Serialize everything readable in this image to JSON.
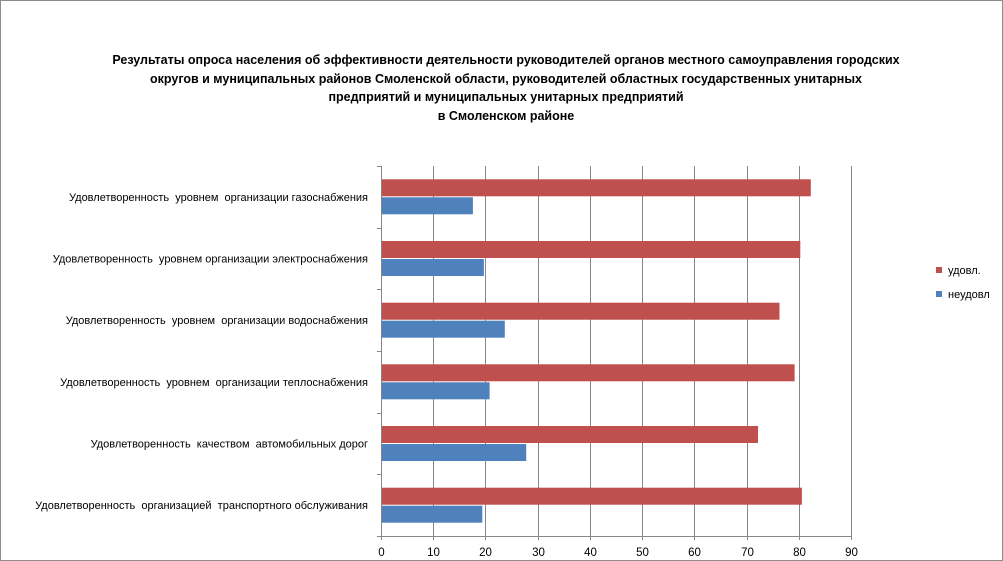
{
  "chart_data": {
    "type": "bar",
    "orientation": "horizontal",
    "title_lines": [
      "Результаты опроса населения об эффективности деятельности руководителей органов местного самоуправления городских",
      "округов и муниципальных районов Смоленской области, руководителей областных государственных унитарных",
      "предприятий и муниципальных унитарных предприятий",
      "в Смоленском районе"
    ],
    "categories": [
      "Удовлетворенность  уровнем  организации газоснабжения",
      "Удовлетворенность  уровнем организации электроснабжения",
      "Удовлетворенность  уровнем  организации водоснабжения",
      "Удовлетворенность  уровнем  организации теплоснабжения",
      "Удовлетворенность  качеством  автомобильных дорог",
      "Удовлетворенность  организацией  транспортного обслуживания"
    ],
    "series": [
      {
        "name": "удовл.",
        "color": "#c0504d",
        "values": [
          82.3,
          80.3,
          76.3,
          79.2,
          72.2,
          80.6
        ]
      },
      {
        "name": "неудовл",
        "color": "#4f81bd",
        "values": [
          17.6,
          19.7,
          23.7,
          20.8,
          27.8,
          19.4
        ]
      }
    ],
    "xlim": [
      0,
      90
    ],
    "x_ticks": [
      0,
      10,
      20,
      30,
      40,
      50,
      60,
      70,
      80,
      90
    ],
    "grid": "vertical",
    "grid_color": "#878787",
    "legend_position": "right"
  }
}
